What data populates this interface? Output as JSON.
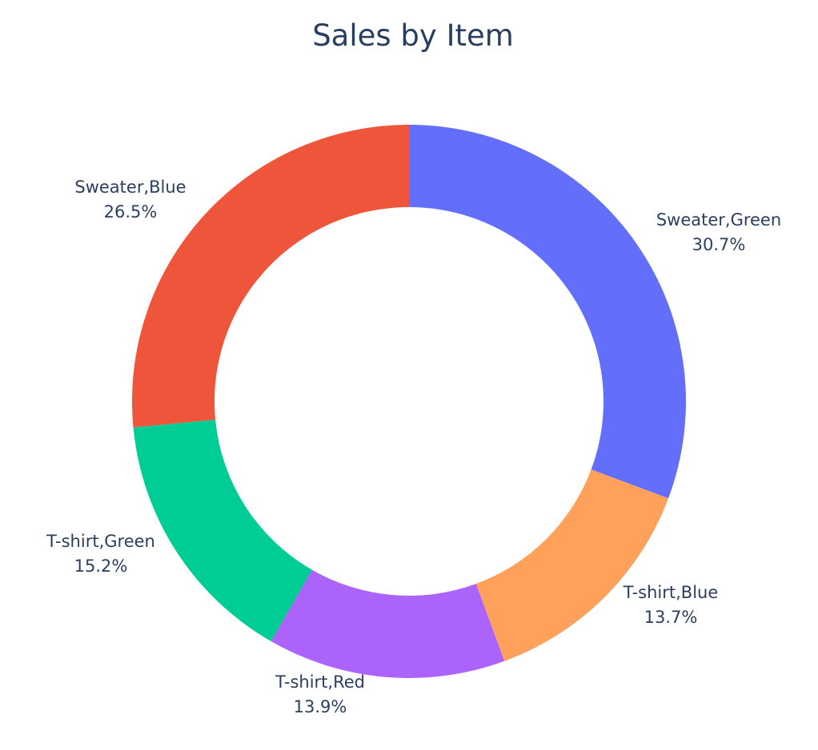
{
  "chart_data": {
    "type": "pie",
    "hole": true,
    "title": "Sales by Item",
    "slices": [
      {
        "label": "Sweater,Green",
        "value": 30.7,
        "percent_text": "30.7%",
        "color": "#636efa"
      },
      {
        "label": "T-shirt,Blue",
        "value": 13.7,
        "percent_text": "13.7%",
        "color": "#ffa15a"
      },
      {
        "label": "T-shirt,Red",
        "value": 13.9,
        "percent_text": "13.9%",
        "color": "#ab63fa"
      },
      {
        "label": "T-shirt,Green",
        "value": 15.2,
        "percent_text": "15.2%",
        "color": "#00cc96"
      },
      {
        "label": "Sweater,Blue",
        "value": 26.5,
        "percent_text": "26.5%",
        "color": "#ef553b"
      }
    ]
  }
}
